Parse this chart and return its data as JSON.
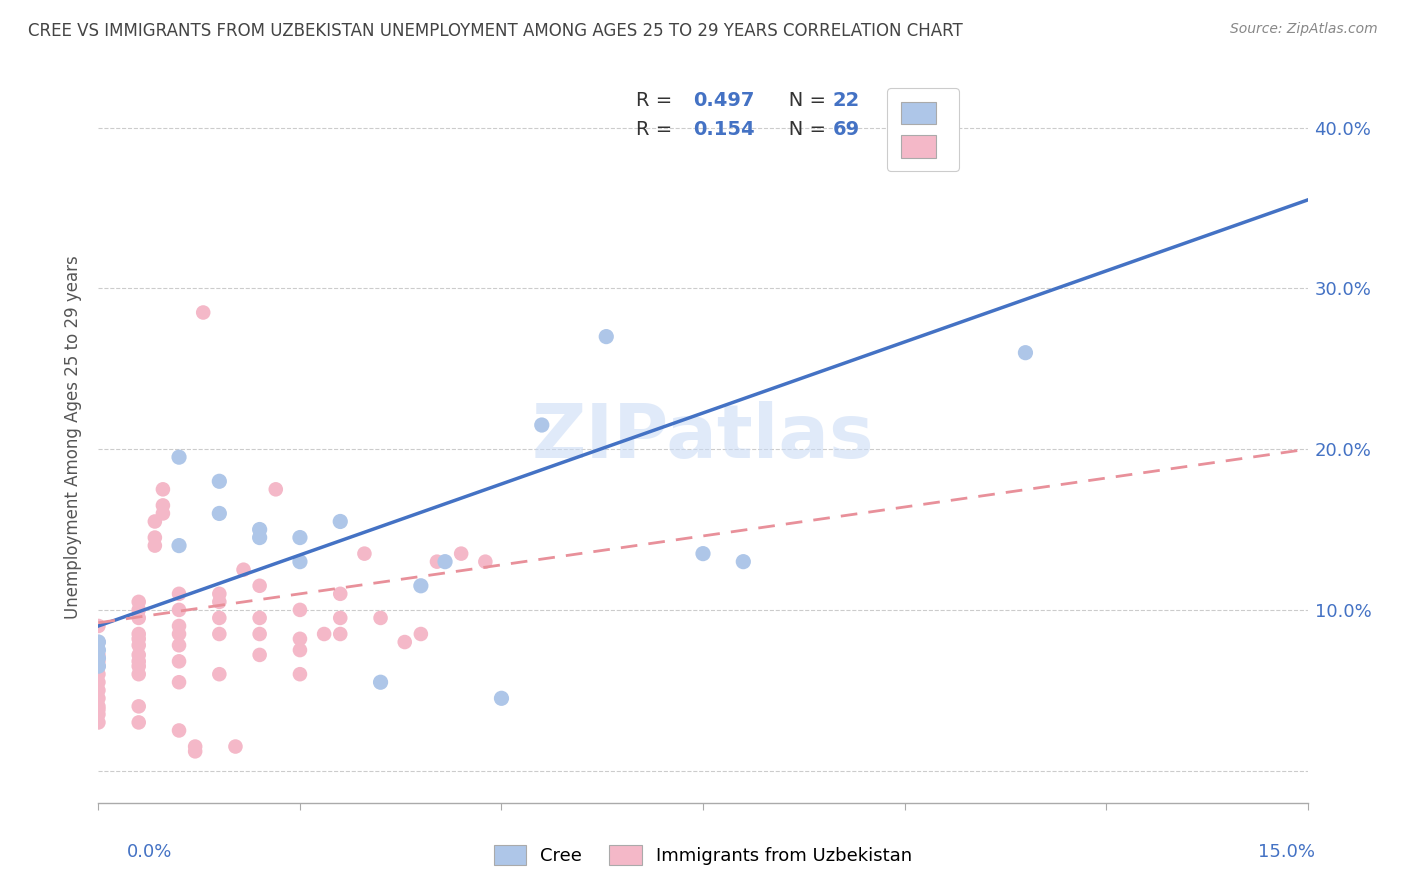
{
  "title": "CREE VS IMMIGRANTS FROM UZBEKISTAN UNEMPLOYMENT AMONG AGES 25 TO 29 YEARS CORRELATION CHART",
  "source": "Source: ZipAtlas.com",
  "ylabel": "Unemployment Among Ages 25 to 29 years",
  "ytick_labels": [
    "",
    "10.0%",
    "20.0%",
    "30.0%",
    "40.0%"
  ],
  "ytick_values": [
    0.0,
    0.1,
    0.2,
    0.3,
    0.4
  ],
  "xlim": [
    0.0,
    0.15
  ],
  "ylim": [
    -0.02,
    0.435
  ],
  "watermark": "ZIPatlas",
  "cree_R": "0.497",
  "cree_N": "22",
  "uzbek_R": "0.154",
  "uzbek_N": "69",
  "cree_color": "#aec6e8",
  "uzbek_color": "#f4b8c8",
  "cree_line_color": "#4472c4",
  "uzbek_line_color": "#e8909a",
  "title_color": "#444444",
  "source_color": "#888888",
  "axis_label_color": "#4472c4",
  "grid_color": "#cccccc",
  "cree_points": [
    [
      0.0,
      0.075
    ],
    [
      0.0,
      0.08
    ],
    [
      0.0,
      0.065
    ],
    [
      0.01,
      0.14
    ],
    [
      0.01,
      0.195
    ],
    [
      0.015,
      0.18
    ],
    [
      0.015,
      0.16
    ],
    [
      0.02,
      0.15
    ],
    [
      0.02,
      0.145
    ],
    [
      0.025,
      0.145
    ],
    [
      0.025,
      0.13
    ],
    [
      0.03,
      0.155
    ],
    [
      0.035,
      0.055
    ],
    [
      0.04,
      0.115
    ],
    [
      0.043,
      0.13
    ],
    [
      0.05,
      0.045
    ],
    [
      0.055,
      0.215
    ],
    [
      0.063,
      0.27
    ],
    [
      0.075,
      0.135
    ],
    [
      0.08,
      0.13
    ],
    [
      0.115,
      0.26
    ],
    [
      0.0,
      0.07
    ]
  ],
  "uzbek_points": [
    [
      0.0,
      0.065
    ],
    [
      0.0,
      0.06
    ],
    [
      0.0,
      0.055
    ],
    [
      0.0,
      0.05
    ],
    [
      0.0,
      0.045
    ],
    [
      0.0,
      0.04
    ],
    [
      0.0,
      0.038
    ],
    [
      0.0,
      0.072
    ],
    [
      0.0,
      0.035
    ],
    [
      0.0,
      0.03
    ],
    [
      0.0,
      0.068
    ],
    [
      0.0,
      0.08
    ],
    [
      0.0,
      0.09
    ],
    [
      0.005,
      0.105
    ],
    [
      0.005,
      0.1
    ],
    [
      0.005,
      0.095
    ],
    [
      0.005,
      0.085
    ],
    [
      0.005,
      0.082
    ],
    [
      0.005,
      0.078
    ],
    [
      0.005,
      0.072
    ],
    [
      0.005,
      0.068
    ],
    [
      0.005,
      0.065
    ],
    [
      0.005,
      0.06
    ],
    [
      0.005,
      0.04
    ],
    [
      0.005,
      0.03
    ],
    [
      0.007,
      0.155
    ],
    [
      0.007,
      0.145
    ],
    [
      0.007,
      0.14
    ],
    [
      0.008,
      0.175
    ],
    [
      0.008,
      0.165
    ],
    [
      0.008,
      0.16
    ],
    [
      0.01,
      0.11
    ],
    [
      0.01,
      0.1
    ],
    [
      0.01,
      0.09
    ],
    [
      0.01,
      0.085
    ],
    [
      0.01,
      0.078
    ],
    [
      0.01,
      0.068
    ],
    [
      0.01,
      0.055
    ],
    [
      0.01,
      0.025
    ],
    [
      0.012,
      0.015
    ],
    [
      0.012,
      0.012
    ],
    [
      0.013,
      0.285
    ],
    [
      0.015,
      0.11
    ],
    [
      0.015,
      0.105
    ],
    [
      0.015,
      0.095
    ],
    [
      0.015,
      0.085
    ],
    [
      0.015,
      0.06
    ],
    [
      0.017,
      0.015
    ],
    [
      0.018,
      0.125
    ],
    [
      0.02,
      0.115
    ],
    [
      0.02,
      0.095
    ],
    [
      0.02,
      0.085
    ],
    [
      0.02,
      0.072
    ],
    [
      0.022,
      0.175
    ],
    [
      0.025,
      0.1
    ],
    [
      0.025,
      0.082
    ],
    [
      0.025,
      0.075
    ],
    [
      0.025,
      0.06
    ],
    [
      0.028,
      0.085
    ],
    [
      0.03,
      0.11
    ],
    [
      0.03,
      0.095
    ],
    [
      0.03,
      0.085
    ],
    [
      0.033,
      0.135
    ],
    [
      0.035,
      0.095
    ],
    [
      0.038,
      0.08
    ],
    [
      0.04,
      0.085
    ],
    [
      0.042,
      0.13
    ],
    [
      0.045,
      0.135
    ],
    [
      0.048,
      0.13
    ]
  ],
  "cree_trendline": [
    [
      0.0,
      0.09
    ],
    [
      0.15,
      0.355
    ]
  ],
  "uzbek_trendline": [
    [
      0.0,
      0.092
    ],
    [
      0.15,
      0.2
    ]
  ]
}
